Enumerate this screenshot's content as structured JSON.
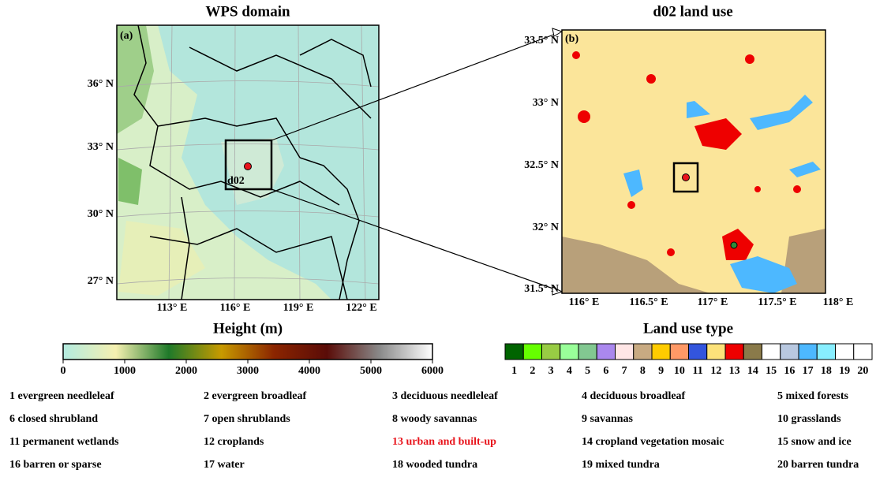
{
  "panels": [
    {
      "title": "WPS domain",
      "label": "(a)",
      "box_label": "d02",
      "y_labels": [
        "36° N",
        "33° N",
        "30° N",
        "27° N"
      ],
      "x_labels": [
        "113° E",
        "116° E",
        "119° E",
        "122° E"
      ]
    },
    {
      "title": "d02 land use",
      "label": "(b)",
      "y_labels": [
        "33.5° N",
        "33° N",
        "32.5° N",
        "32° N",
        "31.5° N"
      ],
      "x_labels": [
        "116° E",
        "116.5° E",
        "117° E",
        "117.5° E",
        "118° E"
      ]
    }
  ],
  "height_colorbar": {
    "title": "Height (m)",
    "ticks": [
      "0",
      "1000",
      "2000",
      "3000",
      "4000",
      "5000",
      "6000"
    ],
    "colors": [
      "#b3ebe0",
      "#f5f0b0",
      "#1f7a2a",
      "#c89a00",
      "#8b2500",
      "#5a0c08",
      "#8a8a8a",
      "#ffffff"
    ]
  },
  "landuse_colorbar": {
    "title": "Land use type",
    "ticks": [
      "1",
      "2",
      "3",
      "4",
      "5",
      "6",
      "7",
      "8",
      "9",
      "10",
      "11",
      "12",
      "13",
      "14",
      "15",
      "16",
      "17",
      "18",
      "19",
      "20"
    ],
    "colors": [
      "#006400",
      "#66ff00",
      "#98cc44",
      "#99ff99",
      "#82c891",
      "#aa88ee",
      "#ffe6e6",
      "#c8aa82",
      "#ffcc00",
      "#ff9966",
      "#3355dd",
      "#fce27a",
      "#ee0000",
      "#8a7a4a",
      "#ffffff",
      "#b8c8e0",
      "#4db8ff",
      "#88eeff",
      "#ffffff",
      "#ffffff"
    ]
  },
  "legend": [
    "1 evergreen needleleaf",
    "2 evergreen broadleaf",
    "3 deciduous needleleaf",
    "4 deciduous broadleaf",
    "5 mixed forests",
    "6 closed shrubland",
    "7 open shrublands",
    "8 woody savannas",
    "9 savannas",
    "10 grasslands",
    "11 permanent wetlands",
    "12 croplands",
    "13 urban and built-up",
    "14 cropland vegetation mosaic",
    "15 snow and ice",
    "16 barren or sparse",
    "17 water",
    "18 wooded tundra",
    "19 mixed tundra",
    "20 barren tundra"
  ]
}
